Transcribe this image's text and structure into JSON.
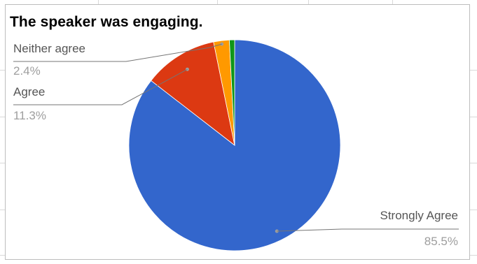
{
  "chart_data": {
    "type": "pie",
    "title": "The speaker was engaging.",
    "slices": [
      {
        "label": "Strongly Agree",
        "value": 85.5,
        "value_label": "85.5%",
        "color": "#3366cc"
      },
      {
        "label": "Agree",
        "value": 11.3,
        "value_label": "11.3%",
        "color": "#dc3912"
      },
      {
        "label": "Neither agree",
        "value": 2.4,
        "value_label": "2.4%",
        "color": "#ff9900"
      },
      {
        "label": "",
        "value": 0.8,
        "value_label": "",
        "color": "#109618"
      }
    ]
  }
}
